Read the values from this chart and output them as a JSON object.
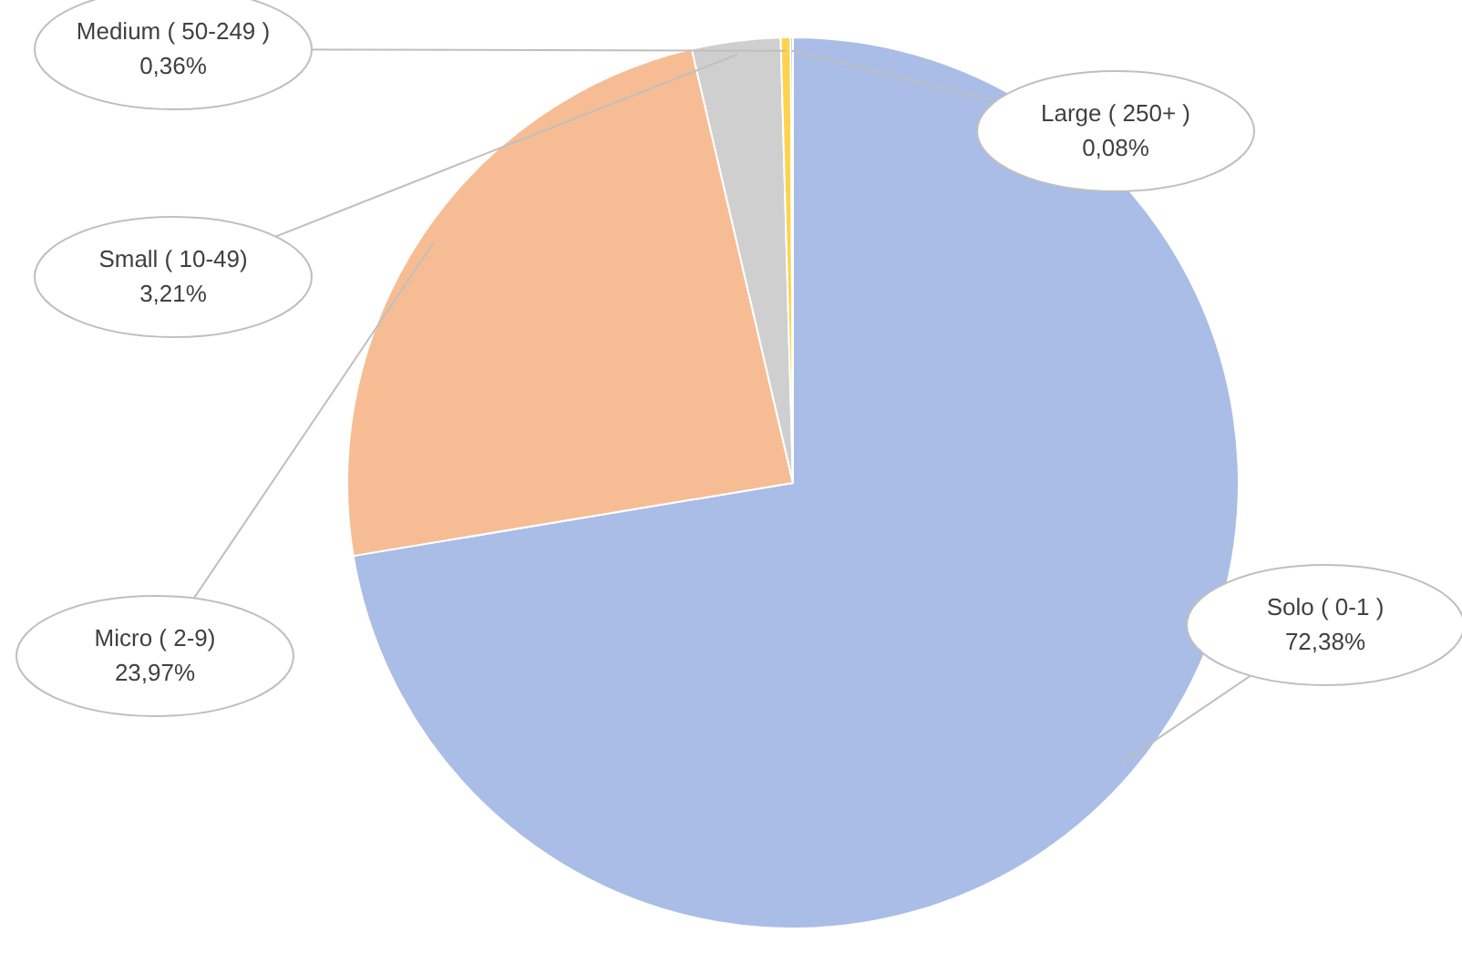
{
  "chart_data": {
    "type": "pie",
    "categories": [
      "Solo ( 0-1 )",
      "Micro ( 2-9)",
      "Small ( 10-49)",
      "Medium ( 50-249 )",
      "Large ( 250+ )"
    ],
    "values": [
      72.38,
      23.97,
      3.21,
      0.36,
      0.08
    ],
    "value_labels": [
      "72,38%",
      "23,97%",
      "3,21%",
      "0,36%",
      "0,08%"
    ],
    "colors": [
      "#a9bde6",
      "#f6bd94",
      "#cfcfcf",
      "#ffd24d",
      "#6f9fd8"
    ],
    "legend": false
  }
}
